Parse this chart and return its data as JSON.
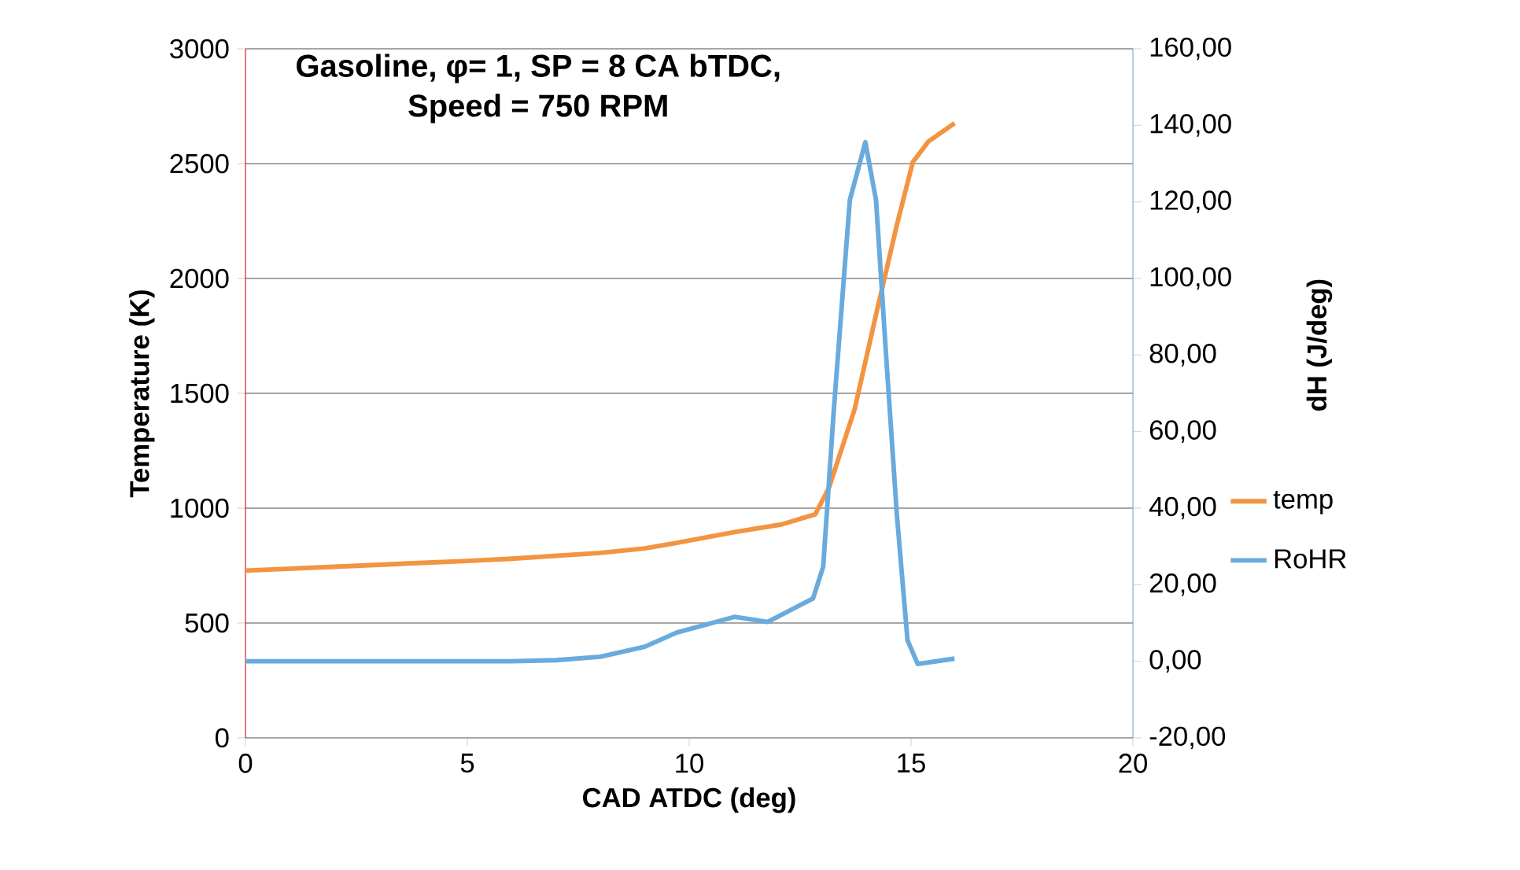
{
  "chart_data": {
    "type": "line",
    "title": "Gasoline, φ= 1, SP = 8 CA bTDC,",
    "subtitle": "Speed = 750 RPM",
    "xlabel": "CAD ATDC (deg)",
    "ylabel": "Temperature (K)",
    "y2label": "dH (J/deg)",
    "xlim": [
      0,
      20
    ],
    "xticks": [
      0,
      5,
      10,
      15,
      20
    ],
    "ylim": [
      0,
      3000
    ],
    "yticks": [
      0,
      500,
      1000,
      1500,
      2000,
      2500,
      3000
    ],
    "y2lim": [
      -20,
      160
    ],
    "y2ticks": [
      {
        "value": -20,
        "label": "-20,00"
      },
      {
        "value": 0,
        "label": "0,00"
      },
      {
        "value": 20,
        "label": "20,00"
      },
      {
        "value": 40,
        "label": "40,00"
      },
      {
        "value": 60,
        "label": "60,00"
      },
      {
        "value": 80,
        "label": "80,00"
      },
      {
        "value": 100,
        "label": "100,00"
      },
      {
        "value": 120,
        "label": "120,00"
      },
      {
        "value": 140,
        "label": "140,00"
      },
      {
        "value": 160,
        "label": "160,00"
      }
    ],
    "grid": "y",
    "legend": "right",
    "marker": "none",
    "line_style": "solid",
    "series": [
      {
        "name": "temp",
        "color": "#f39442",
        "x": [
          0,
          2,
          4,
          5,
          6,
          8,
          9,
          9.72,
          11,
          12.08,
          12.84,
          13.15,
          13.73,
          14.21,
          14.68,
          15.04,
          15.39,
          15.98
        ],
        "values": [
          728,
          745,
          762,
          770,
          780,
          805,
          825,
          849,
          895,
          929,
          973,
          1089,
          1432,
          1842,
          2233,
          2507,
          2596,
          2676
        ]
      },
      {
        "name": "RoHR",
        "color": "#6aaadc",
        "axis": "y2",
        "x": [
          0,
          2,
          4,
          6,
          7,
          8,
          9,
          9.72,
          11.02,
          11.77,
          12.79,
          13.02,
          13.26,
          13.62,
          13.97,
          14.21,
          14.44,
          14.68,
          14.92,
          15.15,
          15.98
        ],
        "values": [
          0,
          0,
          0,
          0,
          0.3,
          1.2,
          3.8,
          7.5,
          11.6,
          10.3,
          16.4,
          24.7,
          65.8,
          120.5,
          135.6,
          120.5,
          79.4,
          38.3,
          5.5,
          -0.7,
          0.7
        ]
      }
    ]
  }
}
